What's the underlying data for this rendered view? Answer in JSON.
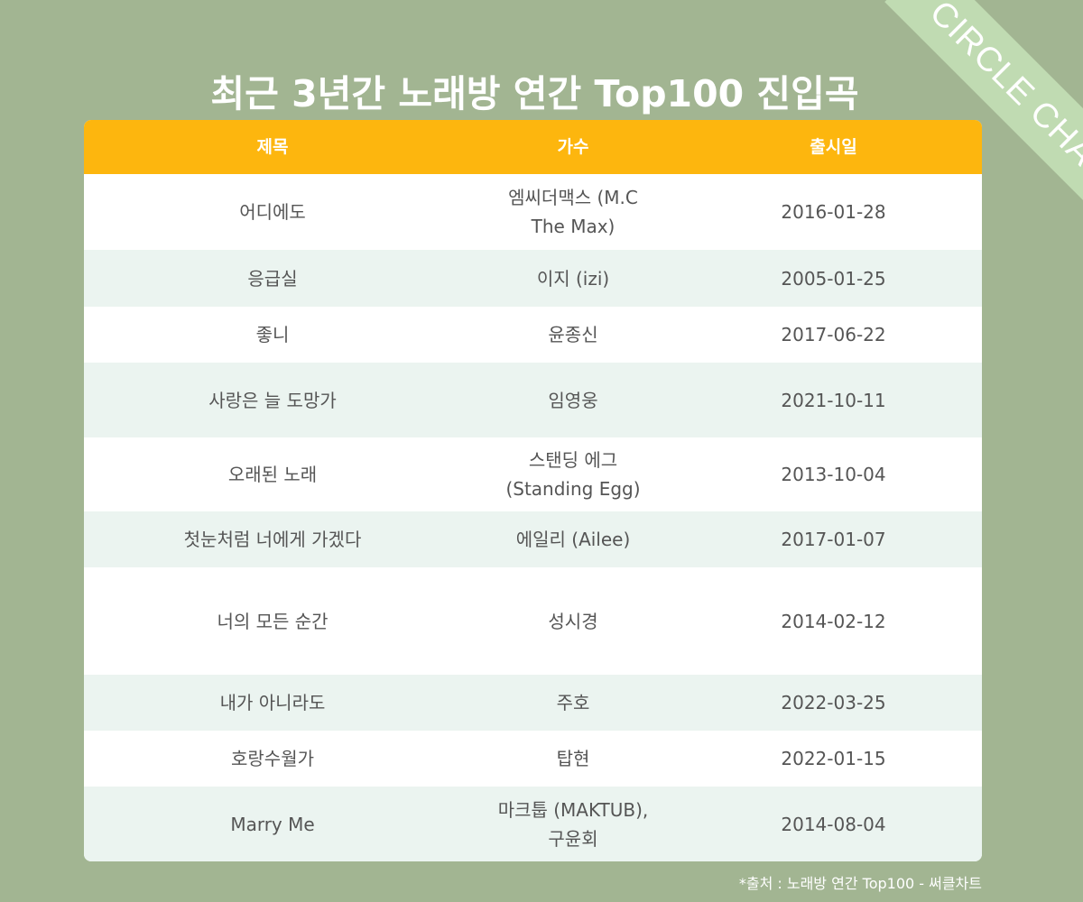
{
  "ribbon": {
    "label": "CIRCLE CHART",
    "color": "#c0dbb2"
  },
  "title": "최근 3년간 노래방 연간 Top100 진입곡",
  "colors": {
    "background": "#a2b592",
    "header": "#fdb60e",
    "row_alt": "#ebf4f0"
  },
  "table": {
    "headers": [
      "제목",
      "가수",
      "출시일"
    ],
    "rows": [
      [
        "어디에도",
        "엠씨더맥스 (M.C The Max)",
        "2016-01-28"
      ],
      [
        "응급실",
        "이지 (izi)",
        "2005-01-25"
      ],
      [
        "좋니",
        "윤종신",
        "2017-06-22"
      ],
      [
        "사랑은 늘 도망가",
        "임영웅",
        "2021-10-11"
      ],
      [
        "오래된 노래",
        "스탠딩 에그(Standing Egg)",
        "2013-10-04"
      ],
      [
        "첫눈처럼 너에게 가겠다",
        "에일리 (Ailee)",
        "2017-01-07"
      ],
      [
        "너의 모든 순간",
        "성시경",
        "2014-02-12"
      ],
      [
        "내가 아니라도",
        "주호",
        "2022-03-25"
      ],
      [
        "호랑수월가",
        "탑현",
        "2022-01-15"
      ],
      [
        "Marry Me",
        "마크툽 (MAKTUB), 구윤회",
        "2014-08-04"
      ]
    ]
  },
  "source": "*출처 : 노래방 연간 Top100 - 써클차트"
}
